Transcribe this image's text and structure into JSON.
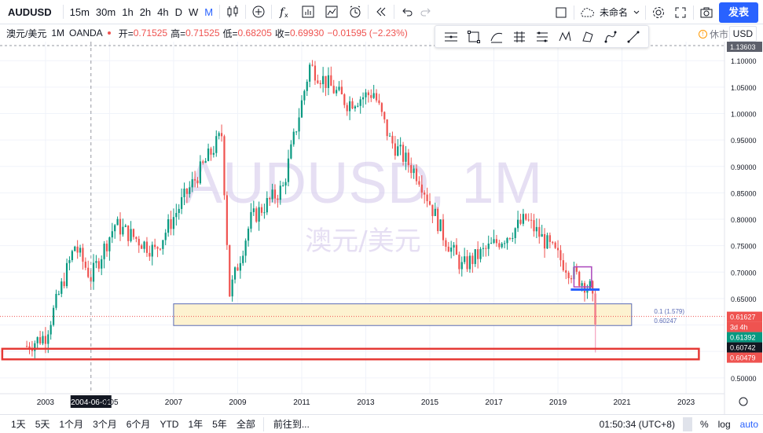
{
  "toolbar": {
    "symbol": "AUDUSD",
    "intervals": [
      "15m",
      "30m",
      "1h",
      "2h",
      "4h",
      "D",
      "W",
      "M"
    ],
    "active_interval": "M",
    "layout_name": "未命名",
    "publish_label": "发表"
  },
  "legend": {
    "pair": "澳元/美元",
    "interval": "1M",
    "source": "OANDA",
    "open_label": "开=",
    "open": "0.71525",
    "high_label": "高=",
    "high": "0.71525",
    "low_label": "低=",
    "low": "0.68205",
    "close_label": "收=",
    "close": "0.69930",
    "change": "−0.01595",
    "change_pct": "(−2.23%)"
  },
  "session": {
    "status": "休市"
  },
  "currency": "USD",
  "watermark": {
    "symbol": "AUDUSD, 1M",
    "description": "澳元/美元"
  },
  "price_axis": {
    "ticks": [
      "1.10000",
      "1.05000",
      "1.00000",
      "0.95000",
      "0.90000",
      "0.85000",
      "0.80000",
      "0.75000",
      "0.70000",
      "0.65000",
      "0.55000",
      "0.50000"
    ],
    "top_tag": "1.13603",
    "tags": [
      {
        "value": "0.61627",
        "color": "#ef5350"
      },
      {
        "value": "3d 4h",
        "color": "#ef5350"
      },
      {
        "value": "0.61392",
        "color": "#089981"
      },
      {
        "value": "0.60742",
        "color": "#131722"
      },
      {
        "value": "0.60479",
        "color": "#ef5350"
      }
    ],
    "overlap_label_top": "0.1 (1.579)",
    "overlap_label_bottom": "0.60247"
  },
  "time_axis": {
    "labels": [
      "2003",
      "2005",
      "2007",
      "2009",
      "2011",
      "2013",
      "2015",
      "2017",
      "2019",
      "2021",
      "2023"
    ],
    "crosshair_date": "2004-06-01"
  },
  "bottombar": {
    "ranges": [
      "1天",
      "5天",
      "1个月",
      "3个月",
      "6个月",
      "YTD",
      "1年",
      "5年",
      "全部"
    ],
    "goto_label": "前往到...",
    "clock": "01:50:34 (UTC+8)",
    "percent_label": "%",
    "log_label": "log",
    "auto_label": "auto"
  },
  "colors": {
    "up": "#089981",
    "down": "#ef5350",
    "accent": "#2962ff",
    "box_fill": "#fdf0c8",
    "box_border": "#5b6bb5",
    "red_box": "#e53935"
  },
  "drawing_tools": [
    "horizontal-lines-icon",
    "rectangle-icon",
    "curve-icon",
    "gann-icon",
    "fib-icon",
    "pattern-icon",
    "projection-icon",
    "line-icon",
    "trend-icon"
  ],
  "chart_data": {
    "type": "candlestick",
    "title": "AUDUSD, 1M",
    "ylim": [
      0.47,
      1.136
    ],
    "x_range": [
      "2001-07",
      "2024-03"
    ],
    "closes_by_year_half": [
      {
        "t": "2002-06",
        "v": 0.56
      },
      {
        "t": "2003-01",
        "v": 0.58
      },
      {
        "t": "2003-12",
        "v": 0.75
      },
      {
        "t": "2004-06",
        "v": 0.69
      },
      {
        "t": "2005-03",
        "v": 0.79
      },
      {
        "t": "2006-06",
        "v": 0.74
      },
      {
        "t": "2007-06",
        "v": 0.85
      },
      {
        "t": "2008-07",
        "v": 0.96
      },
      {
        "t": "2008-10",
        "v": 0.66
      },
      {
        "t": "2009-06",
        "v": 0.8
      },
      {
        "t": "2010-06",
        "v": 0.86
      },
      {
        "t": "2011-04",
        "v": 1.09
      },
      {
        "t": "2012-06",
        "v": 1.02
      },
      {
        "t": "2013-04",
        "v": 1.04
      },
      {
        "t": "2013-10",
        "v": 0.95
      },
      {
        "t": "2014-09",
        "v": 0.88
      },
      {
        "t": "2015-06",
        "v": 0.77
      },
      {
        "t": "2016-01",
        "v": 0.71
      },
      {
        "t": "2017-06",
        "v": 0.77
      },
      {
        "t": "2018-01",
        "v": 0.8
      },
      {
        "t": "2019-06",
        "v": 0.7
      },
      {
        "t": "2020-01",
        "v": 0.67
      },
      {
        "t": "2020-03",
        "v": 0.616
      }
    ]
  }
}
